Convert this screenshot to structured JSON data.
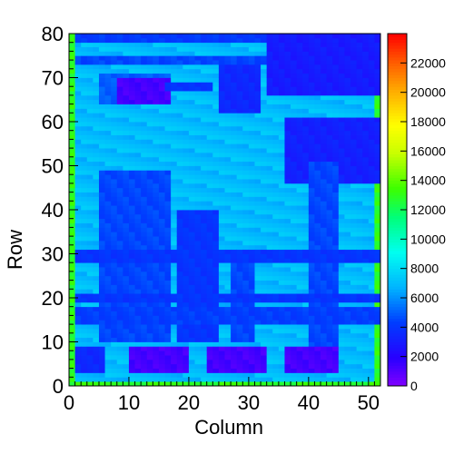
{
  "chart_data": {
    "type": "heatmap",
    "title": "",
    "xlabel": "Column",
    "ylabel": "Row",
    "xlim": [
      0,
      52
    ],
    "ylim": [
      0,
      80
    ],
    "x_ticks": [
      0,
      10,
      20,
      30,
      40,
      50
    ],
    "y_ticks": [
      0,
      10,
      20,
      30,
      40,
      50,
      60,
      70,
      80
    ],
    "z_range": [
      0,
      24000
    ],
    "color_scale": {
      "ticks": [
        0,
        2000,
        4000,
        6000,
        8000,
        10000,
        12000,
        14000,
        16000,
        18000,
        20000,
        22000
      ],
      "palette": "rainbow"
    },
    "base_value": 7000,
    "frame_value": 13000,
    "regions": [
      {
        "col": [
          1,
          32
        ],
        "row": [
          78,
          79
        ],
        "value": 4200
      },
      {
        "col": [
          1,
          32
        ],
        "row": [
          73,
          74
        ],
        "value": 4500
      },
      {
        "col": [
          33,
          51
        ],
        "row": [
          66,
          79
        ],
        "value": 3000
      },
      {
        "col": [
          25,
          31
        ],
        "row": [
          62,
          72
        ],
        "value": 3500
      },
      {
        "col": [
          5,
          16
        ],
        "row": [
          64,
          70
        ],
        "value": 5000
      },
      {
        "col": [
          8,
          16
        ],
        "row": [
          64,
          69
        ],
        "value": 1300
      },
      {
        "col": [
          16,
          23
        ],
        "row": [
          67,
          68
        ],
        "value": 4000
      },
      {
        "col": [
          36,
          51
        ],
        "row": [
          46,
          60
        ],
        "value": 3200
      },
      {
        "col": [
          5,
          16
        ],
        "row": [
          10,
          48
        ],
        "value": 4500
      },
      {
        "col": [
          18,
          24
        ],
        "row": [
          10,
          39
        ],
        "value": 4000
      },
      {
        "col": [
          27,
          30
        ],
        "row": [
          10,
          30
        ],
        "value": 4500
      },
      {
        "col": [
          40,
          44
        ],
        "row": [
          6,
          50
        ],
        "value": 4500
      },
      {
        "col": [
          1,
          51
        ],
        "row": [
          28,
          30
        ],
        "value": 4000
      },
      {
        "col": [
          1,
          51
        ],
        "row": [
          19,
          20
        ],
        "value": 4000
      },
      {
        "col": [
          1,
          51
        ],
        "row": [
          14,
          17
        ],
        "value": 4300
      },
      {
        "col": [
          1,
          5
        ],
        "row": [
          3,
          8
        ],
        "value": 3500
      },
      {
        "col": [
          10,
          19
        ],
        "row": [
          3,
          8
        ],
        "value": 1300
      },
      {
        "col": [
          23,
          32
        ],
        "row": [
          3,
          8
        ],
        "value": 1300
      },
      {
        "col": [
          36,
          44
        ],
        "row": [
          3,
          8
        ],
        "value": 1300
      }
    ]
  }
}
